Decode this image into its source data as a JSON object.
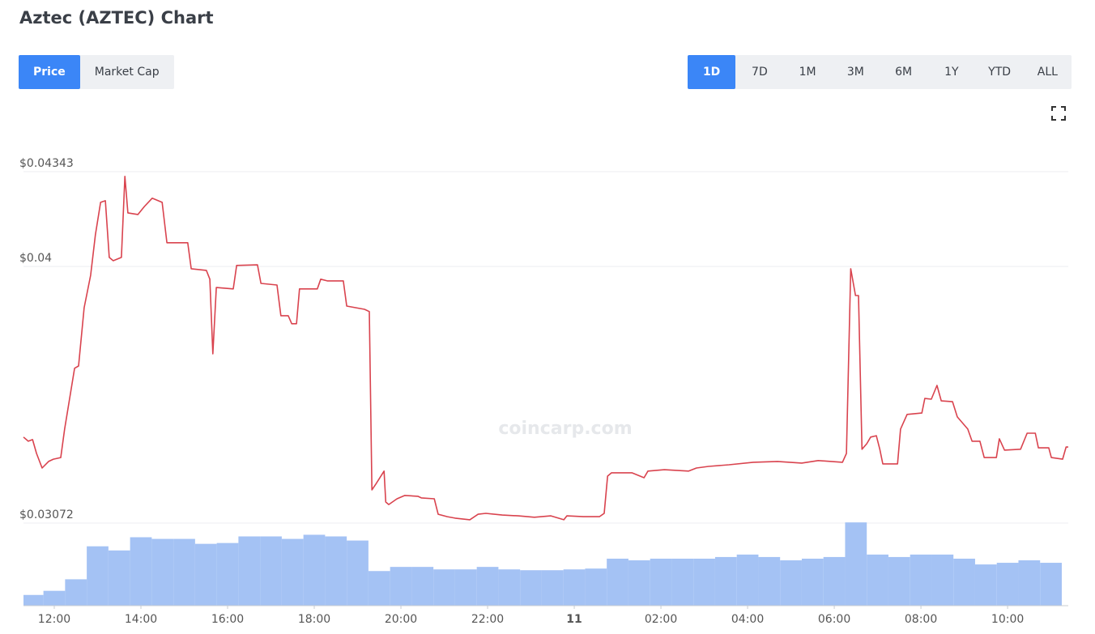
{
  "header": {
    "title": "Aztec (AZTEC) Chart"
  },
  "metric_tabs": [
    "Price",
    "Market Cap"
  ],
  "active_metric": 0,
  "range_tabs": [
    "1D",
    "7D",
    "1M",
    "3M",
    "6M",
    "1Y",
    "YTD",
    "ALL"
  ],
  "active_range": 0,
  "watermark": "coincarp.com",
  "chart_data": {
    "type": "line",
    "x": [
      11.29,
      11.4,
      11.5,
      11.59,
      11.72,
      11.87,
      11.98,
      12.15,
      12.24,
      12.47,
      12.56,
      12.69,
      12.84,
      12.95,
      13.07,
      13.18,
      13.27,
      13.36,
      13.55,
      13.63,
      13.7,
      13.93,
      14.08,
      14.26,
      14.49,
      14.6,
      15.08,
      15.16,
      15.51,
      15.59,
      15.66,
      15.74,
      16.13,
      16.21,
      16.69,
      16.77,
      17.14,
      17.23,
      17.4,
      17.48,
      17.59,
      17.66,
      18.07,
      18.15,
      18.3,
      18.67,
      18.75,
      19.16,
      19.27,
      19.33,
      19.42,
      19.61,
      19.65,
      19.72,
      19.91,
      20.09,
      20.39,
      20.47,
      20.77,
      20.86,
      21.07,
      21.25,
      21.59,
      21.78,
      21.96,
      22.34,
      22.71,
      23.08,
      23.46,
      23.76,
      23.83,
      24.21,
      24.58,
      24.69,
      24.77,
      24.86,
      25.33,
      25.61,
      25.7,
      26.08,
      26.64,
      26.82,
      27.1,
      27.57,
      28.13,
      28.69,
      29.25,
      29.63,
      30.19,
      30.28,
      30.38,
      30.49,
      30.56,
      30.64,
      30.75,
      30.84,
      30.97,
      31.05,
      31.12,
      31.46,
      31.53,
      31.68,
      32.02,
      32.09,
      32.24,
      32.37,
      32.47,
      32.73,
      32.84,
      33.08,
      33.18,
      33.36,
      33.46,
      33.74,
      33.81,
      33.93,
      34.3,
      34.45,
      34.64,
      34.71,
      34.95,
      35.01,
      35.27,
      35.35,
      35.4
    ],
    "series": [
      {
        "color": "#d9434e",
        "values": [
          0.03383,
          0.03368,
          0.03374,
          0.03324,
          0.03271,
          0.03295,
          0.03303,
          0.03309,
          0.03412,
          0.03632,
          0.0364,
          0.03851,
          0.03968,
          0.04115,
          0.04232,
          0.04238,
          0.04033,
          0.04021,
          0.04033,
          0.04326,
          0.04194,
          0.04188,
          0.04217,
          0.04247,
          0.04232,
          0.04086,
          0.04086,
          0.03992,
          0.03986,
          0.03954,
          0.03684,
          0.03924,
          0.03919,
          0.04004,
          0.04006,
          0.03939,
          0.03933,
          0.03822,
          0.03822,
          0.03793,
          0.03793,
          0.03919,
          0.03919,
          0.03954,
          0.03948,
          0.03948,
          0.03857,
          0.03845,
          0.03837,
          0.03192,
          0.03213,
          0.0326,
          0.03148,
          0.03139,
          0.0316,
          0.03172,
          0.03169,
          0.03163,
          0.0316,
          0.03104,
          0.03095,
          0.0309,
          0.03084,
          0.03104,
          0.03107,
          0.03101,
          0.03098,
          0.03093,
          0.03098,
          0.03084,
          0.03098,
          0.03095,
          0.03095,
          0.03107,
          0.03242,
          0.03254,
          0.03254,
          0.03236,
          0.0326,
          0.03265,
          0.0326,
          0.03271,
          0.03277,
          0.03283,
          0.03292,
          0.03295,
          0.03289,
          0.03298,
          0.03292,
          0.03324,
          0.03992,
          0.03895,
          0.03895,
          0.03339,
          0.03359,
          0.03383,
          0.03388,
          0.03339,
          0.03286,
          0.03286,
          0.03412,
          0.03465,
          0.0347,
          0.03523,
          0.0352,
          0.0357,
          0.03514,
          0.03511,
          0.03456,
          0.03412,
          0.03368,
          0.03368,
          0.03309,
          0.03309,
          0.03377,
          0.03336,
          0.03339,
          0.03397,
          0.03397,
          0.03344,
          0.03344,
          0.03309,
          0.03303,
          0.03347,
          0.03347
        ]
      },
      {
        "type": "bar",
        "axis": "y2",
        "color": "#a4c2f4",
        "x": [
          11.5,
          12,
          12.5,
          13,
          13.5,
          14,
          14.5,
          15,
          15.5,
          16,
          16.5,
          17,
          17.5,
          18,
          18.5,
          19,
          19.5,
          20,
          20.5,
          21,
          21.5,
          22,
          22.5,
          23,
          23.5,
          24,
          24.5,
          25,
          25.5,
          26,
          26.5,
          27,
          27.5,
          28,
          28.5,
          29,
          29.5,
          30,
          30.5,
          31,
          31.5,
          32,
          32.5,
          33,
          33.5,
          34,
          34.5,
          35
        ],
        "values": [
          13,
          18,
          32,
          72,
          67,
          83,
          81,
          81,
          75,
          76,
          84,
          84,
          81,
          86,
          84,
          79,
          42,
          47,
          47,
          44,
          44,
          47,
          44,
          43,
          43,
          44,
          45,
          57,
          55,
          57,
          57,
          57,
          59,
          62,
          59,
          55,
          57,
          59,
          101,
          62,
          59,
          62,
          62,
          57,
          50,
          52,
          55,
          52
        ]
      }
    ],
    "xlim": [
      11.29,
      35.4
    ],
    "xticks": [
      {
        "value": 12,
        "label": "12:00"
      },
      {
        "value": 14,
        "label": "14:00"
      },
      {
        "value": 16,
        "label": "16:00"
      },
      {
        "value": 18,
        "label": "18:00"
      },
      {
        "value": 20,
        "label": "20:00"
      },
      {
        "value": 22,
        "label": "22:00"
      },
      {
        "value": 24,
        "label": "11"
      },
      {
        "value": 26,
        "label": "02:00"
      },
      {
        "value": 28,
        "label": "04:00"
      },
      {
        "value": 30,
        "label": "06:00"
      },
      {
        "value": 32,
        "label": "08:00"
      },
      {
        "value": 34,
        "label": "10:00"
      }
    ],
    "ylim": [
      0.03072,
      0.04343
    ],
    "yticks": [
      {
        "value": 0.03072,
        "label": "$0.03072"
      },
      {
        "value": 0.04,
        "label": "$0.04"
      },
      {
        "value": 0.04343,
        "label": "$0.04343"
      }
    ],
    "y2lim": [
      0,
      110
    ],
    "grid": true
  }
}
